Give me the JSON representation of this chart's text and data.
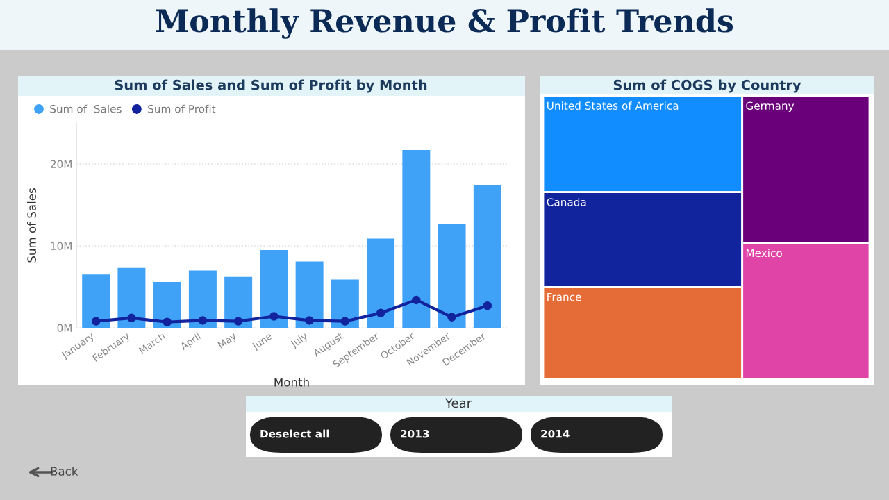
{
  "chart_data": [
    {
      "type": "other",
      "title": "Monthly Revenue & Profit Trends",
      "annotations": [
        "Back"
      ]
    },
    {
      "type": "bar",
      "title": "Sum of Sales and Sum of Profit by Month",
      "xlabel": "Month",
      "ylabel": "Sum of Sales",
      "categories": [
        "January",
        "February",
        "March",
        "April",
        "May",
        "June",
        "July",
        "August",
        "September",
        "October",
        "November",
        "December"
      ],
      "series": [
        {
          "name": "Sum of  Sales",
          "type": "bar",
          "color": "#3fa2f7",
          "values": [
            6.5,
            7.3,
            5.6,
            7.0,
            6.2,
            9.5,
            8.1,
            5.9,
            10.9,
            21.7,
            12.7,
            17.4
          ]
        },
        {
          "name": "Sum of Profit",
          "type": "line",
          "color": "#12239e",
          "marker": "circle",
          "values": [
            0.8,
            1.2,
            0.7,
            0.9,
            0.8,
            1.4,
            0.9,
            0.8,
            1.8,
            3.4,
            1.3,
            2.7
          ]
        }
      ],
      "ylim": [
        0,
        25
      ],
      "yticks": [
        {
          "value": 0,
          "label": "0M"
        },
        {
          "value": 10,
          "label": "10M"
        },
        {
          "value": 20,
          "label": "20M"
        }
      ],
      "grid": "y",
      "legend": "top left"
    },
    {
      "type": "other",
      "title": "Sum of COGS by Country",
      "categories": [
        "United States of America",
        "Canada",
        "France",
        "Germany",
        "Mexico"
      ],
      "colors": [
        "#118dff",
        "#12239e",
        "#e66c37",
        "#6b007b",
        "#e044a7"
      ]
    },
    {
      "type": "other",
      "title": "Year",
      "annotations": [
        "Deselect all",
        "2013",
        "2014"
      ]
    }
  ]
}
